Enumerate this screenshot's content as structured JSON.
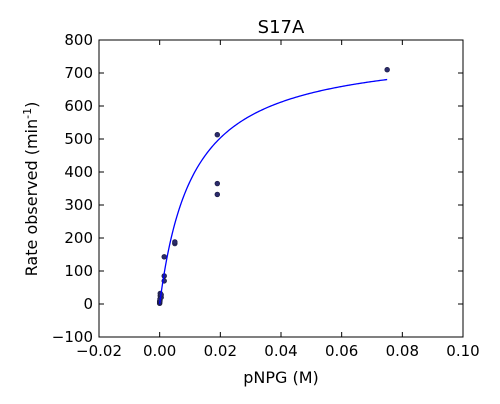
{
  "chart_data": {
    "type": "scatter",
    "title": "S17A",
    "xlabel": "pNPG (M)",
    "ylabel_main": "Rate observed (min",
    "ylabel_sup": "-1",
    "ylabel_close": ")",
    "xlim": [
      -0.02,
      0.1
    ],
    "ylim": [
      -100,
      800
    ],
    "xticks": [
      -0.02,
      0.0,
      0.02,
      0.04,
      0.06,
      0.08,
      0.1
    ],
    "xtick_labels": [
      "−0.02",
      "0.00",
      "0.02",
      "0.04",
      "0.06",
      "0.08",
      "0.10"
    ],
    "yticks": [
      -100,
      0,
      100,
      200,
      300,
      400,
      500,
      600,
      700,
      800
    ],
    "ytick_labels": [
      "−100",
      "0",
      "100",
      "200",
      "300",
      "400",
      "500",
      "600",
      "700",
      "800"
    ],
    "grid": false,
    "series": [
      {
        "kind": "points",
        "color": "#2b2b6b",
        "x": [
          0.0,
          0.0,
          0.0,
          0.0001,
          0.0001,
          0.0002,
          0.0002,
          0.0005,
          0.0005,
          0.0015,
          0.0015,
          0.0015,
          0.005,
          0.005,
          0.019,
          0.019,
          0.019,
          0.075
        ],
        "y": [
          2,
          5,
          8,
          10,
          15,
          25,
          32,
          20,
          28,
          70,
          85,
          143,
          183,
          188,
          332,
          365,
          513,
          710
        ]
      },
      {
        "kind": "fit",
        "color": "#0000ff",
        "model": "michaelis-menten",
        "vmax": 780,
        "km": 0.011,
        "x_range": [
          0.0,
          0.075
        ]
      }
    ]
  }
}
